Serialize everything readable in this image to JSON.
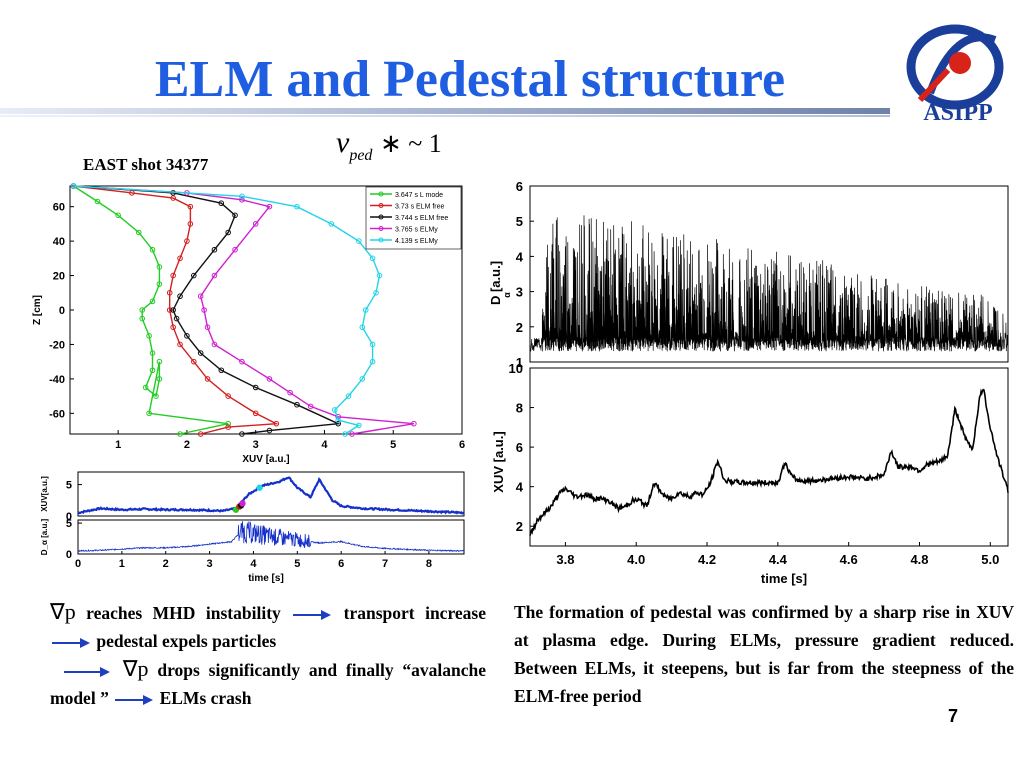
{
  "slide": {
    "title": "ELM and Pedestal structure",
    "logo_text": "ASIPP",
    "formula_nu": "ν",
    "formula_sub": "ped",
    "formula_rest": "∗ ~ 1",
    "shot_label": "EAST shot 34377",
    "page_number": "7",
    "left_text": {
      "nabla": "∇p",
      "t1": "reaches MHD instability",
      "t2": "transport increase",
      "t3": "pedestal expels particles",
      "t4": "drops significantly and finally “avalanche model ”",
      "t5": "ELMs crash"
    },
    "right_text": "The formation of pedestal was confirmed by a sharp rise in XUV at plasma edge. During ELMs, pressure gradient reduced. Between ELMs, it steepens, but is far from the steepness of the ELM-free period"
  },
  "colors": {
    "title": "#1f5ee0",
    "arrow": "#1f3fbf",
    "logo": "#1b3e9a"
  },
  "chart_data": [
    {
      "type": "line",
      "xlabel": "XUV [a.u.]",
      "ylabel": "Z [cm]",
      "xlim": [
        0.3,
        6
      ],
      "ylim": [
        -72,
        72
      ],
      "xticks": [
        1,
        2,
        3,
        4,
        5,
        6
      ],
      "yticks": [
        60,
        40,
        20,
        0,
        -20,
        -40,
        -60
      ],
      "series": [
        {
          "name": "3.647 s  L mode",
          "color": "#22cc22",
          "x": [
            0.35,
            0.7,
            1.0,
            1.3,
            1.5,
            1.6,
            1.6,
            1.5,
            1.35,
            1.35,
            1.45,
            1.5,
            1.5,
            1.4,
            1.55,
            1.6,
            1.6,
            1.45,
            2.6,
            1.9
          ],
          "y": [
            72,
            63,
            55,
            45,
            35,
            25,
            15,
            5,
            0,
            -5,
            -15,
            -25,
            -35,
            -45,
            -50,
            -40,
            -30,
            -60,
            -66,
            -72
          ]
        },
        {
          "name": "3.73 s   ELM free",
          "color": "#d42020",
          "x": [
            0.35,
            1.2,
            1.8,
            2.05,
            2.05,
            2.0,
            1.9,
            1.8,
            1.75,
            1.75,
            1.8,
            1.9,
            2.1,
            2.3,
            2.6,
            3.0,
            3.3,
            2.6,
            2.2
          ],
          "y": [
            72,
            68,
            65,
            60,
            50,
            40,
            30,
            20,
            10,
            0,
            -10,
            -20,
            -30,
            -40,
            -50,
            -60,
            -66,
            -68,
            -72
          ]
        },
        {
          "name": "3.744 s  ELM free",
          "color": "#111111",
          "x": [
            0.35,
            1.8,
            2.5,
            2.7,
            2.6,
            2.4,
            2.1,
            1.9,
            1.8,
            1.85,
            2.0,
            2.2,
            2.5,
            3.0,
            3.6,
            4.2,
            3.2,
            2.8
          ],
          "y": [
            72,
            68,
            62,
            55,
            45,
            35,
            20,
            8,
            0,
            -5,
            -15,
            -25,
            -35,
            -45,
            -55,
            -66,
            -70,
            -72
          ]
        },
        {
          "name": "3.765 s  ELMy",
          "color": "#d020d0",
          "x": [
            0.35,
            2.0,
            2.8,
            3.2,
            3.0,
            2.7,
            2.4,
            2.2,
            2.25,
            2.3,
            2.4,
            2.8,
            3.2,
            3.5,
            3.8,
            4.2,
            5.3,
            4.4
          ],
          "y": [
            72,
            68,
            64,
            60,
            50,
            35,
            20,
            8,
            0,
            -10,
            -20,
            -30,
            -40,
            -48,
            -56,
            -62,
            -66,
            -72
          ]
        },
        {
          "name": "4.139 s  ELMy",
          "color": "#22d4e6",
          "x": [
            0.35,
            2.8,
            3.6,
            4.1,
            4.5,
            4.7,
            4.8,
            4.75,
            4.6,
            4.55,
            4.7,
            4.7,
            4.55,
            4.35,
            4.15,
            4.2,
            4.5,
            4.3
          ],
          "y": [
            72,
            66,
            60,
            50,
            40,
            30,
            20,
            10,
            0,
            -10,
            -20,
            -30,
            -40,
            -50,
            -58,
            -64,
            -67,
            -72
          ]
        }
      ]
    },
    {
      "type": "line",
      "xlabel": "time [s]",
      "ylabel": "XUV[a.u.]",
      "xlim": [
        0,
        8.8
      ],
      "ylim": [
        0,
        7
      ],
      "yticks": [
        5,
        0
      ],
      "series": [
        {
          "name": "XUV",
          "color": "#1430c8",
          "x": [
            0,
            0.5,
            1.0,
            1.5,
            2.0,
            2.5,
            3.0,
            3.3,
            3.6,
            3.7,
            3.9,
            4.2,
            4.6,
            4.8,
            5.0,
            5.3,
            5.5,
            5.8,
            6.0,
            6.5,
            7.5,
            8.5,
            8.8
          ],
          "y": [
            0.5,
            1.2,
            1.0,
            1.1,
            1.0,
            1.0,
            0.9,
            0.8,
            1.2,
            2.0,
            3.5,
            4.8,
            5.5,
            6.2,
            4.5,
            3.0,
            5.8,
            2.5,
            1.6,
            1.2,
            0.9,
            0.6,
            0.5
          ]
        }
      ]
    },
    {
      "type": "line",
      "xlabel": "time [s]",
      "ylabel": "D_α [a.u.]",
      "xlim": [
        0,
        8.8
      ],
      "ylim": [
        0,
        5.5
      ],
      "xticks": [
        0,
        1,
        2,
        3,
        4,
        5,
        6,
        7,
        8
      ],
      "yticks": [
        5,
        0
      ],
      "series": [
        {
          "name": "Dα",
          "color": "#1430c8",
          "x": [
            0,
            0.5,
            1.0,
            1.5,
            2.0,
            2.5,
            3.0,
            3.5,
            3.7,
            4.0,
            4.5,
            5.0,
            5.5,
            6.0,
            6.5,
            7.0,
            8.0,
            8.8
          ],
          "y": [
            0.5,
            0.6,
            0.8,
            1.0,
            1.0,
            1.2,
            1.6,
            2.0,
            3.5,
            3.2,
            2.6,
            2.2,
            1.8,
            2.0,
            1.2,
            0.9,
            0.6,
            0.5
          ]
        }
      ]
    },
    {
      "type": "line",
      "xlabel": "",
      "ylabel": "D_α [a.u.]",
      "xlim": [
        3.7,
        5.05
      ],
      "ylim": [
        1,
        6
      ],
      "yticks": [
        6,
        5,
        4,
        3,
        2,
        1
      ],
      "series": [
        {
          "name": "Dα",
          "color": "#000000",
          "x": [
            3.7,
            3.73,
            3.75,
            3.8,
            3.9,
            4.0,
            4.1,
            4.2,
            4.3,
            4.4,
            4.5,
            4.6,
            4.7,
            4.8,
            4.9,
            5.0,
            5.05
          ],
          "y": [
            1.3,
            1.5,
            5.4,
            5.3,
            5.1,
            5.0,
            4.8,
            4.6,
            4.4,
            4.2,
            4.0,
            3.6,
            3.4,
            3.2,
            3.0,
            2.9,
            2.6
          ]
        }
      ]
    },
    {
      "type": "line",
      "xlabel": "time [s]",
      "ylabel": "XUV [a.u.]",
      "xlim": [
        3.7,
        5.05
      ],
      "ylim": [
        1,
        10
      ],
      "xticks": [
        3.8,
        4.0,
        4.2,
        4.4,
        4.6,
        4.8,
        5.0
      ],
      "yticks": [
        10,
        8,
        6,
        4,
        2
      ],
      "series": [
        {
          "name": "XUV",
          "color": "#000000",
          "x": [
            3.7,
            3.72,
            3.76,
            3.78,
            3.8,
            3.83,
            3.86,
            3.88,
            3.9,
            3.92,
            3.95,
            3.97,
            3.99,
            4.01,
            4.03,
            4.05,
            4.08,
            4.1,
            4.12,
            4.15,
            4.17,
            4.19,
            4.21,
            4.23,
            4.25,
            4.3,
            4.35,
            4.4,
            4.42,
            4.44,
            4.46,
            4.5,
            4.55,
            4.6,
            4.65,
            4.7,
            4.72,
            4.74,
            4.76,
            4.78,
            4.8,
            4.82,
            4.84,
            4.86,
            4.88,
            4.9,
            4.91,
            4.93,
            4.95,
            4.97,
            4.98,
            5.0,
            5.02,
            5.05
          ],
          "y": [
            1.5,
            2.3,
            3.0,
            3.6,
            3.9,
            3.5,
            3.6,
            3.4,
            3.4,
            3.3,
            2.9,
            3.0,
            3.3,
            3.3,
            3.0,
            4.2,
            3.5,
            3.4,
            3.7,
            3.5,
            3.7,
            3.6,
            4.2,
            5.3,
            4.3,
            4.2,
            4.2,
            4.2,
            5.2,
            4.5,
            4.3,
            4.3,
            4.4,
            4.5,
            4.4,
            4.6,
            5.8,
            5.0,
            5.0,
            5.0,
            4.8,
            5.1,
            5.2,
            5.3,
            5.6,
            7.9,
            7.5,
            6.4,
            5.9,
            8.5,
            9.0,
            7.0,
            5.5,
            3.8
          ]
        }
      ]
    }
  ]
}
